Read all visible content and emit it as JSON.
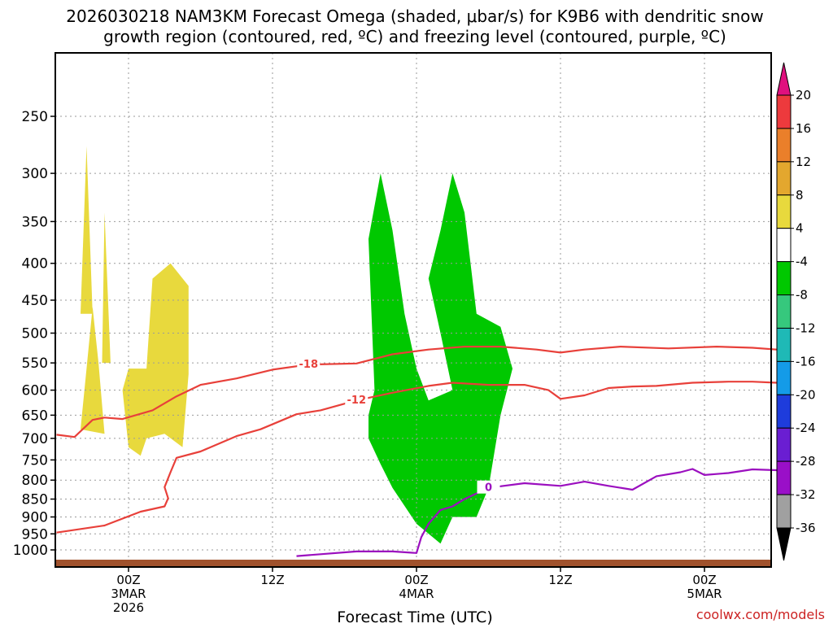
{
  "chart_data": {
    "type": "time-height contour",
    "title_line1": "2026030218 NAM3KM Forecast Omega (shaded, μbar/s) for K9B6 with dendritic snow",
    "title_line2": "growth region (contoured, red, ºC) and freezing level (contoured, purple, ºC)",
    "xlabel": "Forecast Time (UTC)",
    "watermark": "coolwx.com/models",
    "y_axis": {
      "units": "hPa",
      "ticks": [
        250,
        300,
        350,
        400,
        450,
        500,
        550,
        600,
        650,
        700,
        750,
        800,
        850,
        900,
        950,
        1000
      ],
      "tick_labels": [
        "250",
        "300",
        "350",
        "400",
        "450",
        "500",
        "550",
        "600",
        "650",
        "700",
        "750",
        "800",
        "850",
        "900",
        "950",
        "1000"
      ],
      "range": [
        1025,
        200
      ],
      "scale": "log-pressure"
    },
    "x_axis": {
      "units": "forecast hours from 2026030218",
      "range": [
        0,
        60
      ],
      "ticks": [
        {
          "hour": 6,
          "line1": "00Z",
          "line2": "3MAR",
          "line3": "2026"
        },
        {
          "hour": 18,
          "line1": "12Z",
          "line2": "",
          "line3": ""
        },
        {
          "hour": 30,
          "line1": "00Z",
          "line2": "4MAR",
          "line3": ""
        },
        {
          "hour": 42,
          "line1": "12Z",
          "line2": "",
          "line3": ""
        },
        {
          "hour": 54,
          "line1": "00Z",
          "line2": "5MAR",
          "line3": ""
        }
      ]
    },
    "colorbar": {
      "labels": [
        "20",
        "16",
        "12",
        "8",
        "4",
        "-4",
        "-8",
        "-12",
        "-16",
        "-20",
        "-24",
        "-28",
        "-32",
        "-36"
      ],
      "colors": [
        "#ed3a3d",
        "#ea7f2a",
        "#e3a72e",
        "#e8d93d",
        "#ffffff",
        "#00c800",
        "#36c87d",
        "#1fb9b6",
        "#149be8",
        "#1e3cdc",
        "#6a1ed2",
        "#9a0fc8",
        "#a0a0a0"
      ],
      "top_arrow_color": "#e0107e",
      "bottom_arrow_color": "#000000"
    },
    "contours": [
      {
        "name": "dgz -18C",
        "color": "#e8403a",
        "label": "-18",
        "points": [
          [
            0,
            692
          ],
          [
            1.5,
            697
          ],
          [
            3,
            660
          ],
          [
            4,
            655
          ],
          [
            5.5,
            658
          ],
          [
            8,
            640
          ],
          [
            10,
            612
          ],
          [
            12,
            590
          ],
          [
            15,
            578
          ],
          [
            18,
            562
          ],
          [
            21,
            553
          ],
          [
            25,
            551
          ],
          [
            28,
            535
          ],
          [
            31,
            527
          ],
          [
            34,
            522
          ],
          [
            37,
            522
          ],
          [
            40,
            527
          ],
          [
            42,
            532
          ],
          [
            44,
            527
          ],
          [
            47,
            522
          ],
          [
            51,
            525
          ],
          [
            55,
            522
          ],
          [
            58,
            524
          ],
          [
            60,
            527
          ]
        ]
      },
      {
        "name": "dgz -12C",
        "color": "#e8403a",
        "label": "-12",
        "points": [
          [
            0,
            946
          ],
          [
            4,
            925
          ],
          [
            7,
            885
          ],
          [
            9,
            870
          ],
          [
            9.3,
            848
          ],
          [
            9,
            818
          ],
          [
            9.5,
            780
          ],
          [
            10,
            745
          ],
          [
            12,
            730
          ],
          [
            15,
            695
          ],
          [
            17,
            680
          ],
          [
            20,
            648
          ],
          [
            22,
            640
          ],
          [
            25,
            620
          ],
          [
            28,
            605
          ],
          [
            31,
            592
          ],
          [
            33,
            586
          ],
          [
            36,
            590
          ],
          [
            39,
            590
          ],
          [
            41,
            600
          ],
          [
            42,
            617
          ],
          [
            44,
            610
          ],
          [
            46,
            596
          ],
          [
            48,
            593
          ],
          [
            50,
            592
          ],
          [
            53,
            586
          ],
          [
            56,
            584
          ],
          [
            58,
            584
          ],
          [
            60,
            586
          ]
        ]
      },
      {
        "name": "freezing level 0C",
        "color": "#9b0fbf",
        "label": "0",
        "points": [
          [
            20,
            1020
          ],
          [
            22,
            1014
          ],
          [
            25,
            1005
          ],
          [
            28,
            1005
          ],
          [
            30,
            1010
          ],
          [
            30.4,
            960
          ],
          [
            31,
            920
          ],
          [
            32,
            880
          ],
          [
            33,
            870
          ],
          [
            34,
            850
          ],
          [
            36,
            820
          ],
          [
            39,
            808
          ],
          [
            42,
            815
          ],
          [
            44,
            804
          ],
          [
            46,
            815
          ],
          [
            48,
            825
          ],
          [
            50,
            790
          ],
          [
            52,
            780
          ],
          [
            53,
            772
          ],
          [
            54,
            787
          ],
          [
            56,
            782
          ],
          [
            58,
            773
          ],
          [
            60,
            775
          ]
        ]
      }
    ],
    "shaded_regions": [
      {
        "level": "4 to 8 (ascent)",
        "color": "#e8d93d",
        "areas": [
          [
            [
              2,
              680
            ],
            [
              2.5,
              560
            ],
            [
              3,
              460
            ],
            [
              3.5,
              550
            ],
            [
              4,
              690
            ]
          ],
          [
            [
              6,
              720
            ],
            [
              5.5,
              600
            ],
            [
              6,
              560
            ],
            [
              7.5,
              560
            ],
            [
              8,
              420
            ],
            [
              9.5,
              400
            ],
            [
              11,
              430
            ],
            [
              11,
              570
            ],
            [
              10.5,
              720
            ],
            [
              9,
              690
            ],
            [
              7.5,
              700
            ],
            [
              7,
              740
            ]
          ],
          [
            [
              2,
              470
            ],
            [
              2.5,
              275
            ],
            [
              3,
              470
            ]
          ],
          [
            [
              3.8,
              550
            ],
            [
              4,
              340
            ],
            [
              4.5,
              550
            ]
          ]
        ]
      },
      {
        "level": "-4 to -8 (descent)",
        "color": "#00c800",
        "areas": [
          [
            [
              26,
              370
            ],
            [
              27,
              300
            ],
            [
              28,
              360
            ],
            [
              29,
              470
            ],
            [
              30,
              560
            ],
            [
              31,
              620
            ],
            [
              33,
              600
            ],
            [
              32,
              500
            ],
            [
              31,
              420
            ],
            [
              32,
              360
            ],
            [
              33,
              300
            ],
            [
              34,
              340
            ],
            [
              35,
              470
            ],
            [
              37,
              490
            ],
            [
              38,
              560
            ],
            [
              37,
              650
            ],
            [
              36,
              820
            ],
            [
              35,
              900
            ],
            [
              33,
              900
            ],
            [
              32,
              980
            ],
            [
              30,
              920
            ],
            [
              28,
              820
            ],
            [
              27,
              760
            ],
            [
              26,
              700
            ],
            [
              26,
              650
            ],
            [
              26.5,
              600
            ]
          ]
        ]
      }
    ]
  }
}
